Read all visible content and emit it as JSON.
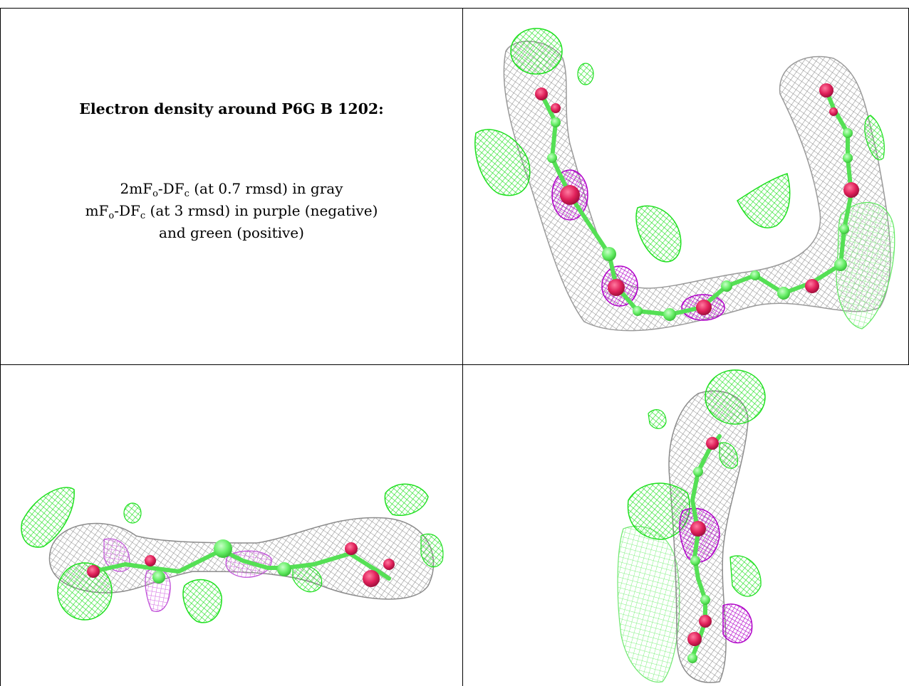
{
  "caption": {
    "title": "Electron density around P6G B 1202:",
    "line1": {
      "pre": "2mF",
      "sub1": "o",
      "mid": "-DF",
      "sub2": "c",
      "post": " (at 0.7 rmsd) in gray"
    },
    "line2": {
      "pre": "mF",
      "sub1": "o",
      "mid": "-DF",
      "sub2": "c",
      "post": " (at 3 rmsd) in purple (negative)"
    },
    "line3": "and green (positive)"
  },
  "colors": {
    "gray_mesh": "#8a8a8a",
    "green_mesh": "#22e022",
    "purple_mesh": "#b000c0",
    "atom_carbon": "#66ee66",
    "atom_oxygen": "#e0205a",
    "border": "#000000"
  },
  "panels": [
    "view-top-right",
    "view-bottom-left",
    "view-bottom-right"
  ]
}
